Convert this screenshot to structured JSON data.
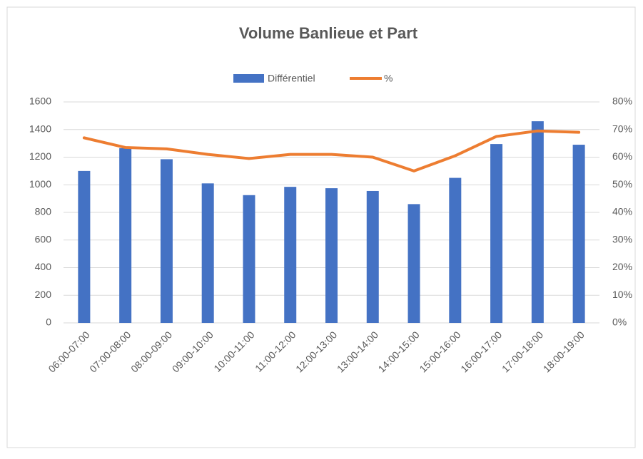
{
  "chart_data": {
    "type": "bar-line",
    "title": "Volume Banlieue et Part",
    "categories": [
      "06:00-07:00",
      "07:00-08:00",
      "08:00-09:00",
      "09:00-10:00",
      "10:00-11:00",
      "11:00-12:00",
      "12:00-13:00",
      "13:00-14:00",
      "14:00-15:00",
      "15:00-16:00",
      "16:00-17:00",
      "17:00-18:00",
      "18:00-19:00"
    ],
    "series": [
      {
        "name": "Différentiel",
        "color": "#4472c4",
        "type": "bar",
        "values": [
          1100,
          1265,
          1185,
          1010,
          925,
          985,
          975,
          955,
          860,
          1050,
          1295,
          1460,
          1290
        ]
      },
      {
        "name": "%",
        "color": "#ed7d31",
        "type": "line",
        "axis": "y2",
        "values": [
          67,
          63.5,
          63,
          61,
          59.5,
          61,
          61,
          60,
          55,
          60.5,
          67.5,
          69.5,
          69
        ]
      }
    ],
    "ylim": [
      0,
      1600
    ],
    "yticks": [
      0,
      200,
      400,
      600,
      800,
      1000,
      1200,
      1400,
      1600
    ],
    "y2lim": [
      0,
      80
    ],
    "y2ticks": [
      {
        "value": 0,
        "label": "0%"
      },
      {
        "value": 10,
        "label": "10%"
      },
      {
        "value": 20,
        "label": "20%"
      },
      {
        "value": 30,
        "label": "30%"
      },
      {
        "value": 40,
        "label": "40%"
      },
      {
        "value": 50,
        "label": "50%"
      },
      {
        "value": 60,
        "label": "60%"
      },
      {
        "value": 70,
        "label": "70%"
      },
      {
        "value": 80,
        "label": "80%"
      }
    ],
    "grid": true,
    "legend": "top"
  }
}
